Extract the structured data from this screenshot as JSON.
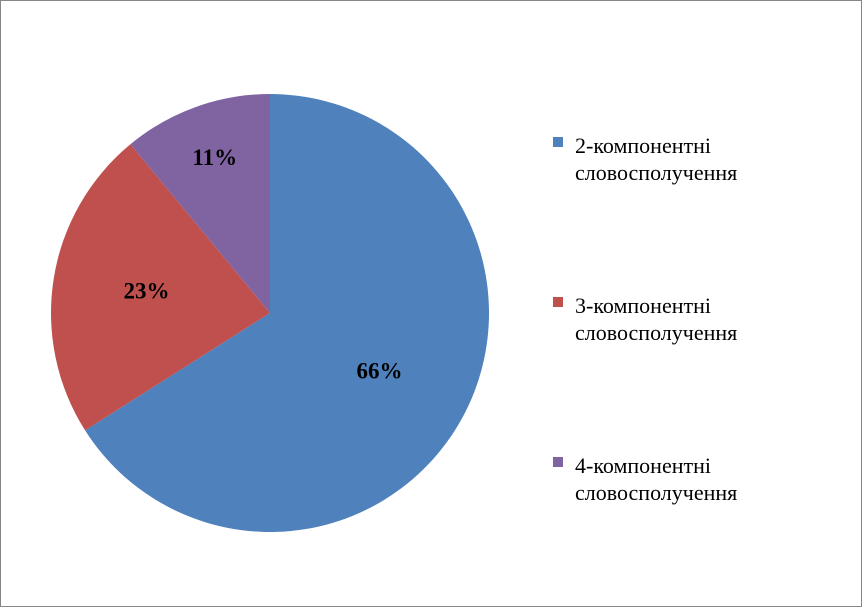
{
  "chart_data": {
    "type": "pie",
    "categories": [
      "2-компонентні словосполучення",
      "3-компонентні словосполучення",
      "4-компонентні словосполучення"
    ],
    "values": [
      66,
      23,
      11
    ],
    "value_labels": [
      "66%",
      "23%",
      "11%"
    ],
    "colors": [
      "#4f81bd",
      "#c0504d",
      "#8064a2"
    ],
    "legend": "right"
  }
}
